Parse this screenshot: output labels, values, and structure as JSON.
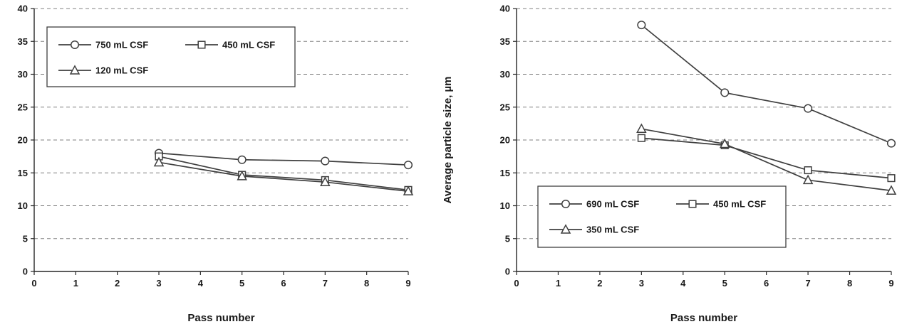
{
  "chart_data": [
    {
      "type": "line",
      "x": [
        3,
        5,
        7,
        9
      ],
      "series": [
        {
          "name": "750 mL CSF",
          "marker": "circle",
          "values": [
            18.0,
            17.0,
            16.8,
            16.2
          ]
        },
        {
          "name": "450 mL CSF",
          "marker": "square",
          "values": [
            17.5,
            14.7,
            13.9,
            12.4
          ]
        },
        {
          "name": "120 mL CSF",
          "marker": "triangle",
          "values": [
            16.6,
            14.5,
            13.6,
            12.2
          ]
        }
      ],
      "title": "",
      "xlabel": "Pass number",
      "ylabel": "",
      "xlim": [
        0,
        9
      ],
      "ylim": [
        0,
        40
      ],
      "xticks": [
        0,
        1,
        2,
        3,
        4,
        5,
        6,
        7,
        8,
        9
      ],
      "yticks": [
        0,
        5,
        10,
        15,
        20,
        25,
        30,
        35,
        40
      ],
      "grid": "horizontal-dashed",
      "legend_position": "top-left",
      "line_color": "#3f3f3f"
    },
    {
      "type": "line",
      "x": [
        3,
        5,
        7,
        9
      ],
      "series": [
        {
          "name": "690 mL CSF",
          "marker": "circle",
          "values": [
            37.5,
            27.2,
            24.8,
            19.5
          ]
        },
        {
          "name": "450 mL CSF",
          "marker": "square",
          "values": [
            20.3,
            19.2,
            15.4,
            14.2
          ]
        },
        {
          "name": "350 mL CSF",
          "marker": "triangle",
          "values": [
            21.7,
            19.4,
            13.9,
            12.3
          ]
        }
      ],
      "title": "",
      "xlabel": "Pass number",
      "ylabel": "Average particle size, µm",
      "xlim": [
        0,
        9
      ],
      "ylim": [
        0,
        40
      ],
      "xticks": [
        0,
        1,
        2,
        3,
        4,
        5,
        6,
        7,
        8,
        9
      ],
      "yticks": [
        0,
        5,
        10,
        15,
        20,
        25,
        30,
        35,
        40
      ],
      "grid": "horizontal-dashed",
      "legend_position": "bottom-left",
      "line_color": "#3f3f3f"
    }
  ]
}
